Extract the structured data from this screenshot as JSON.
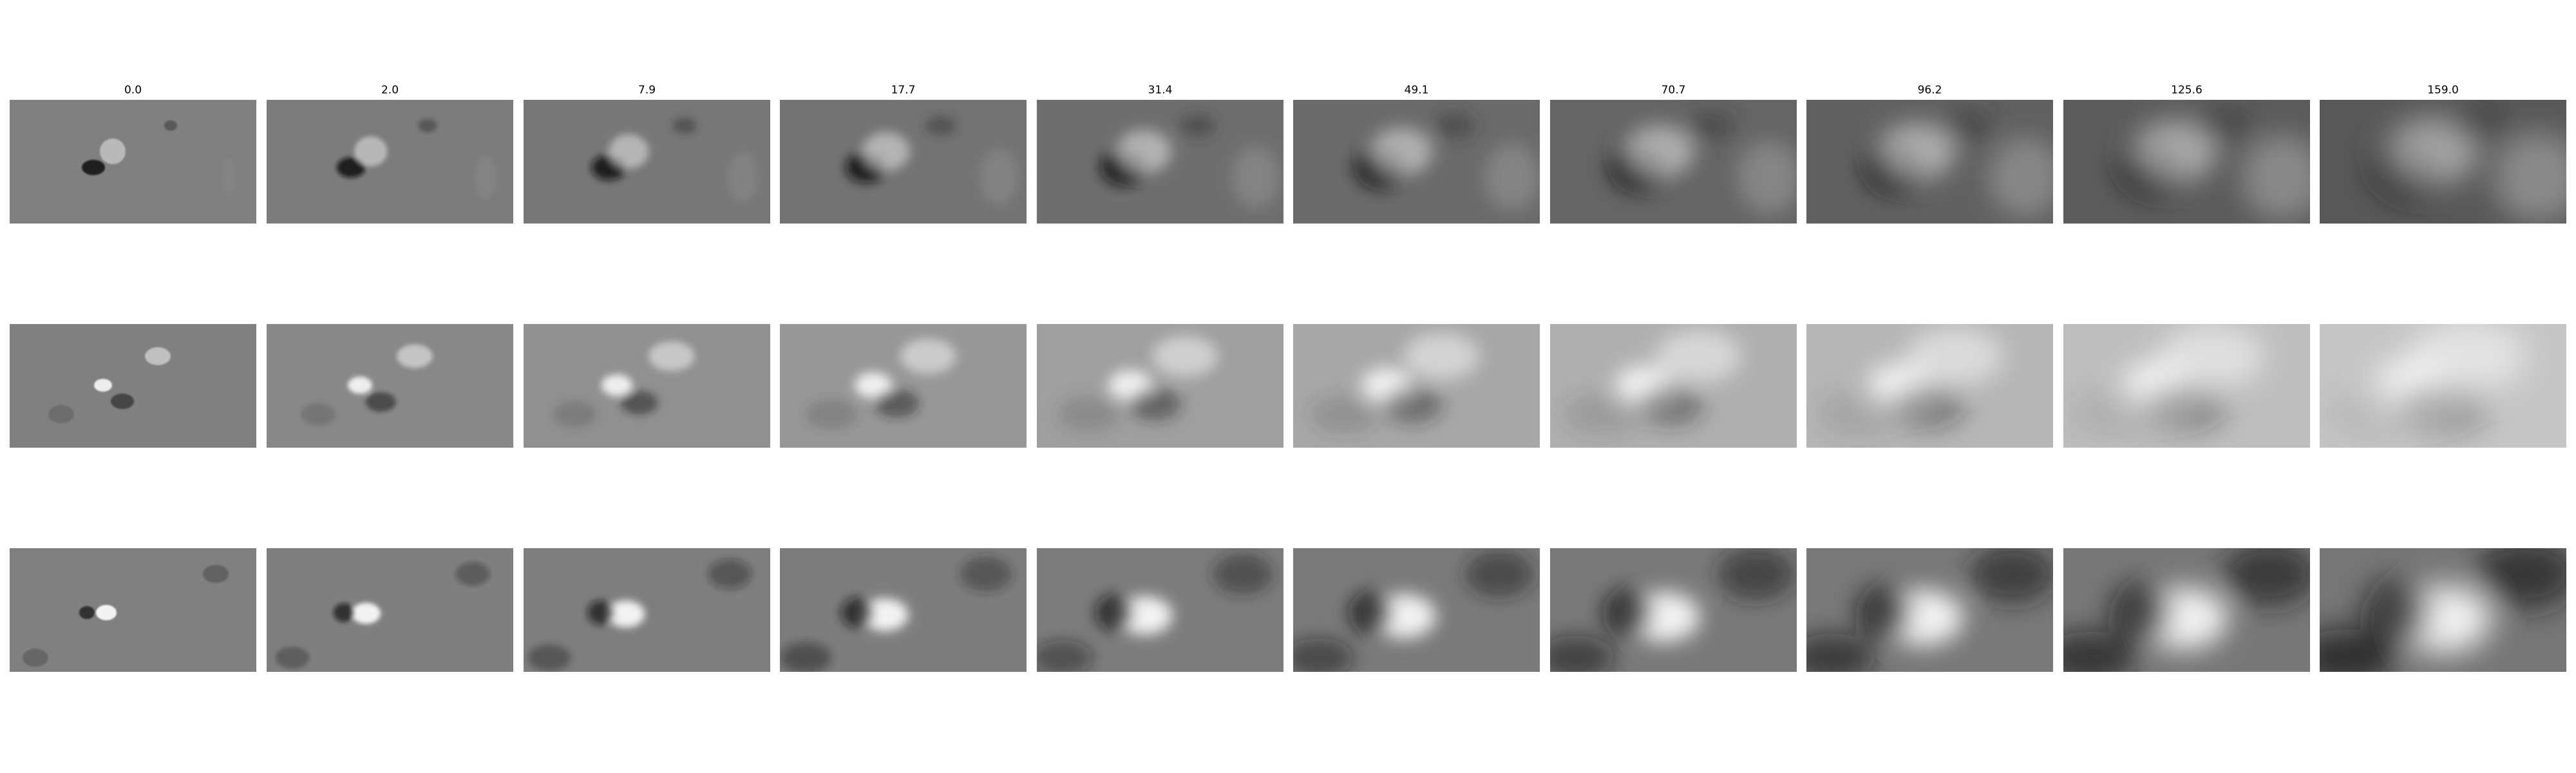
{
  "figure": {
    "columns": [
      {
        "title": "0.0"
      },
      {
        "title": "2.0"
      },
      {
        "title": "7.9"
      },
      {
        "title": "17.7"
      },
      {
        "title": "31.4"
      },
      {
        "title": "49.1"
      },
      {
        "title": "70.7"
      },
      {
        "title": "96.2"
      },
      {
        "title": "125.6"
      },
      {
        "title": "159.0"
      }
    ],
    "rows": 3,
    "background_gray": "#808080"
  }
}
